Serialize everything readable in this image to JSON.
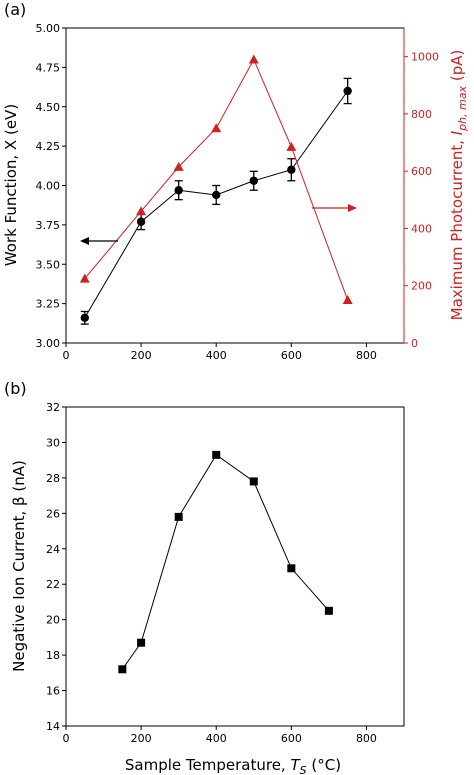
{
  "chart_data": [
    {
      "panel_label": "(a)",
      "type": "line",
      "xlabel": "",
      "xlim": [
        0,
        900
      ],
      "x_ticks": [
        "0",
        "200",
        "400",
        "600",
        "800"
      ],
      "ylabel": "Work Function, X (eV)",
      "ylim": [
        3.0,
        5.0
      ],
      "y_ticks": [
        "3.00",
        "3.25",
        "3.50",
        "3.75",
        "4.00",
        "4.25",
        "4.50",
        "4.75",
        "5.00"
      ],
      "y2label_main": "Maximum Photocurrent, ",
      "y2label_italic": "I",
      "y2label_sub": "ph, max",
      "y2label_unit": " (pA)",
      "y2lim": [
        0,
        1100
      ],
      "y2_ticks": [
        "0",
        "200",
        "400",
        "600",
        "800",
        "1000"
      ],
      "series": [
        {
          "axis": "left",
          "color": "#000000",
          "marker": "circle",
          "x": [
            50,
            200,
            300,
            400,
            500,
            600,
            750
          ],
          "values": [
            3.16,
            3.77,
            3.97,
            3.94,
            4.03,
            4.1,
            4.6
          ],
          "errors": [
            0.04,
            0.05,
            0.06,
            0.06,
            0.06,
            0.07,
            0.08
          ]
        },
        {
          "axis": "right",
          "color": "#cc2222",
          "marker": "triangle",
          "x": [
            50,
            200,
            300,
            400,
            500,
            600,
            750
          ],
          "values": [
            225,
            460,
            615,
            750,
            990,
            685,
            150
          ]
        }
      ]
    },
    {
      "panel_label": "(b)",
      "type": "line",
      "xlabel_main": "Sample Temperature, ",
      "xlabel_italic": "T",
      "xlabel_sub": "S",
      "xlabel_unit": " (°C)",
      "xlim": [
        0,
        900
      ],
      "x_ticks": [
        "0",
        "200",
        "400",
        "600",
        "800"
      ],
      "ylabel": "Negative Ion Current, β (nA)",
      "ylim": [
        14,
        32
      ],
      "y_ticks": [
        "14",
        "16",
        "18",
        "20",
        "22",
        "24",
        "26",
        "28",
        "30",
        "32"
      ],
      "series": [
        {
          "color": "#000000",
          "marker": "square",
          "x": [
            150,
            200,
            300,
            400,
            500,
            600,
            700
          ],
          "values": [
            17.2,
            18.7,
            25.8,
            29.3,
            27.8,
            22.9,
            20.5
          ]
        }
      ]
    }
  ]
}
